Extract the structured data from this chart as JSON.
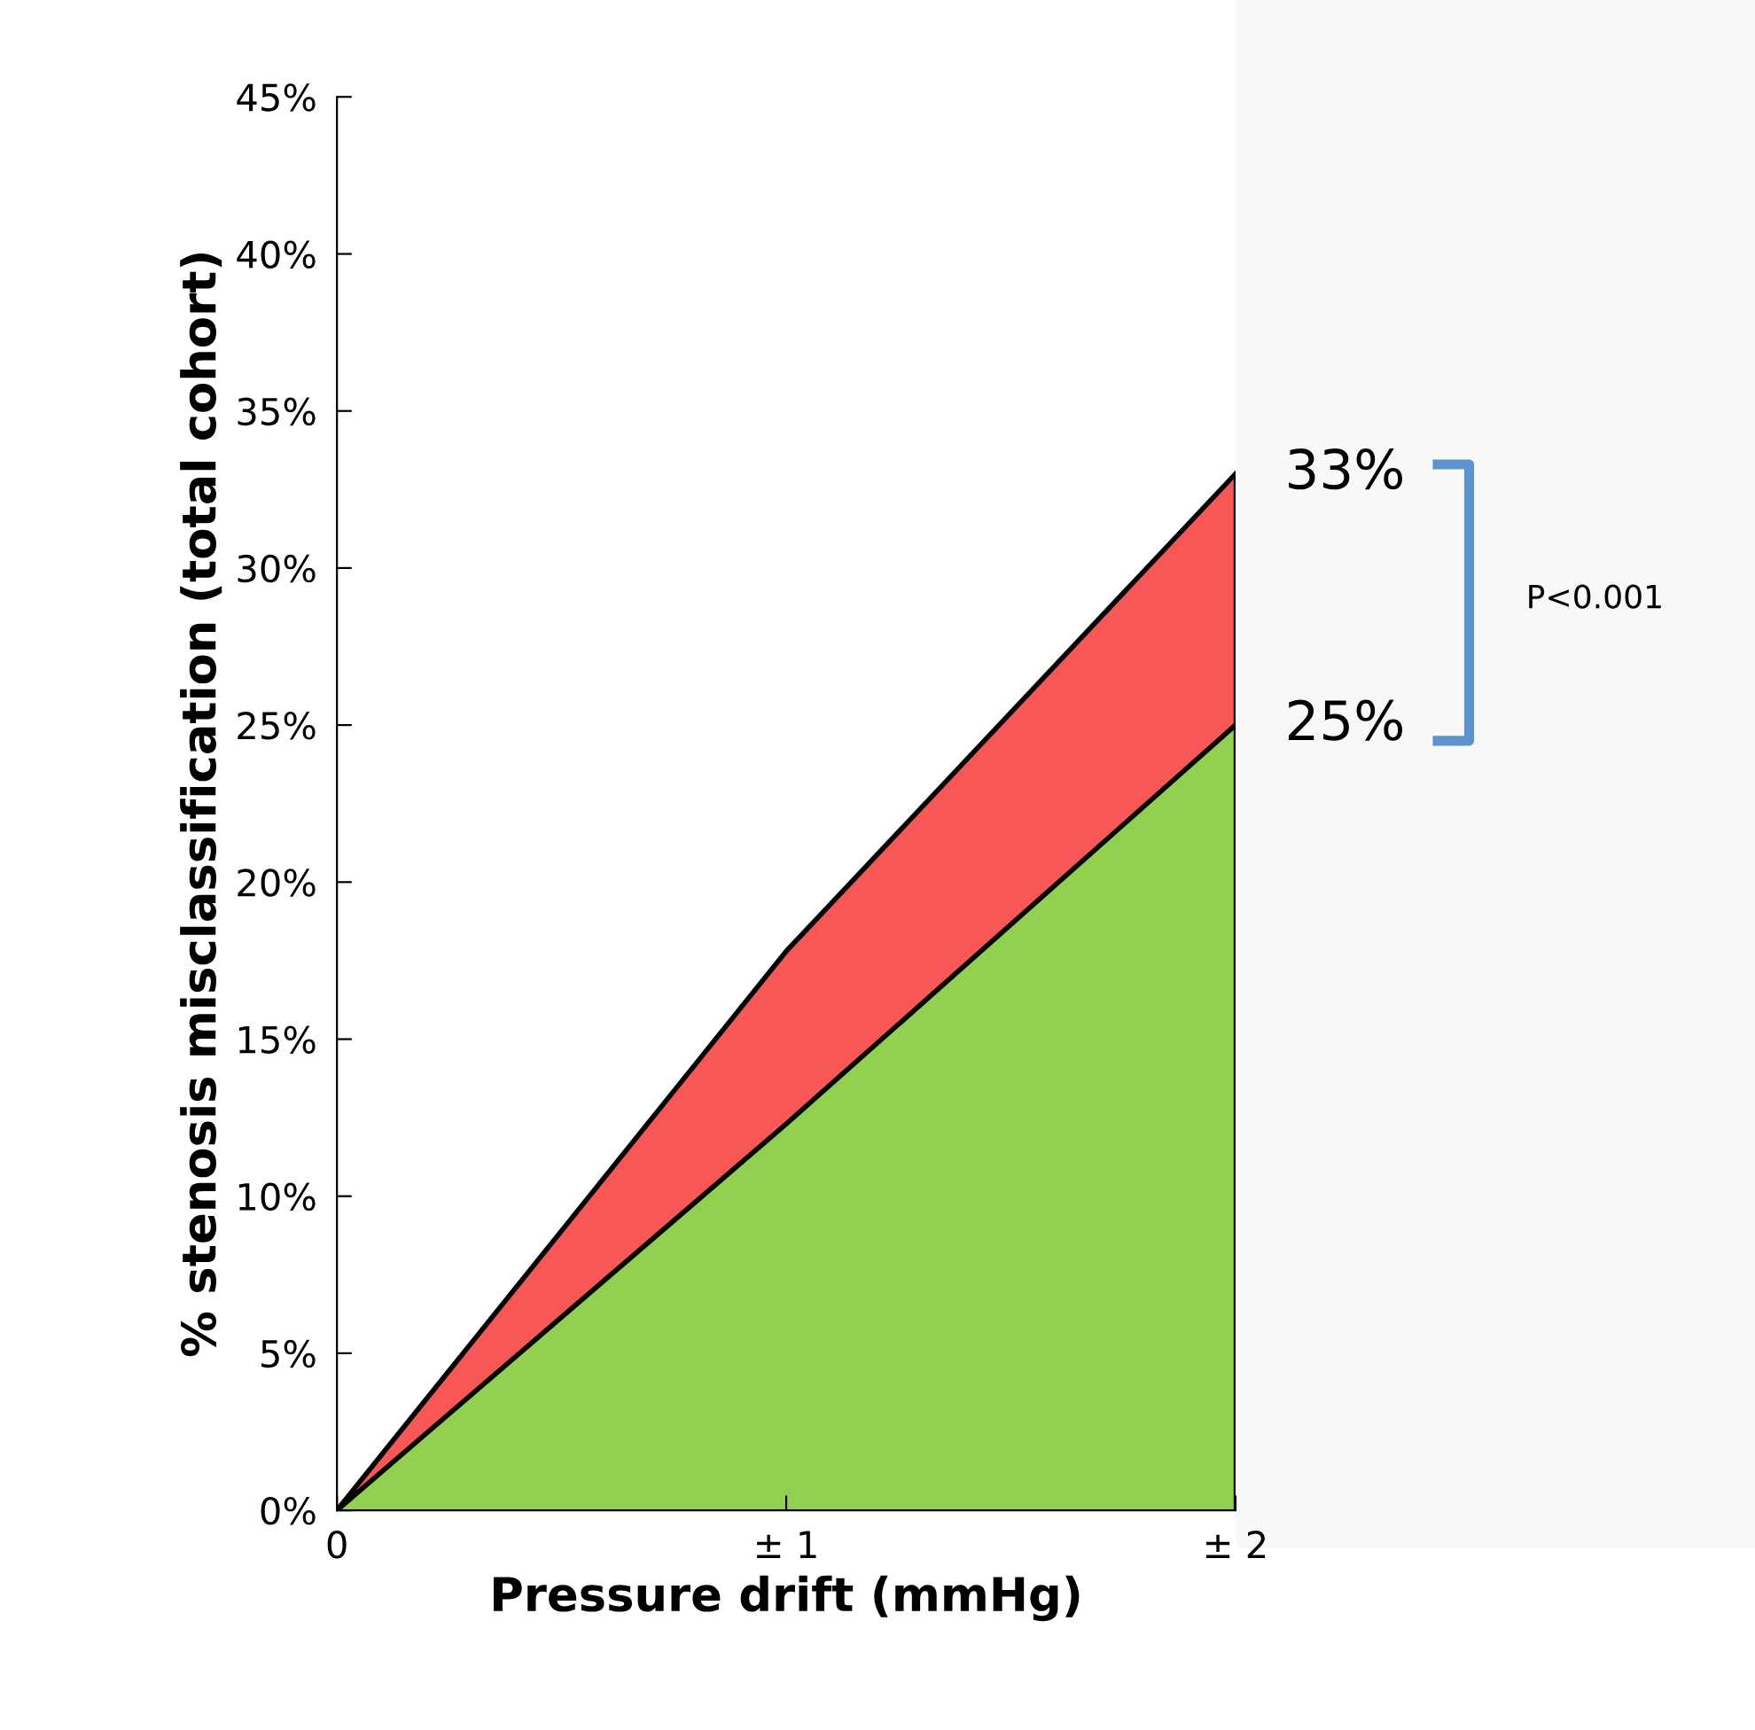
{
  "chart_data": {
    "type": "area",
    "stacked": true,
    "xlabel": "Pressure drift (mmHg)",
    "ylabel": "% stenosis misclassification (total cohort)",
    "categories": [
      "0",
      "± 1",
      "± 2"
    ],
    "series": [
      {
        "color": "#92d050",
        "values": [
          0,
          12.3,
          25
        ]
      },
      {
        "color": "#f75857",
        "values": [
          0,
          5.5,
          8
        ]
      }
    ],
    "ylim": [
      0,
      45
    ],
    "yticks": [
      {
        "value": 0,
        "label": "0%"
      },
      {
        "value": 5,
        "label": "5%"
      },
      {
        "value": 10,
        "label": "10%"
      },
      {
        "value": 15,
        "label": "15%"
      },
      {
        "value": 20,
        "label": "20%"
      },
      {
        "value": 25,
        "label": "25%"
      },
      {
        "value": 30,
        "label": "30%"
      },
      {
        "value": 35,
        "label": "35%"
      },
      {
        "value": 40,
        "label": "40%"
      },
      {
        "value": 45,
        "label": "45%"
      }
    ],
    "annotations": [
      {
        "text": "33%",
        "x": "± 2",
        "y": 33
      },
      {
        "text": "25%",
        "x": "± 2",
        "y": 25
      },
      "P<0.001"
    ],
    "grid": false
  }
}
